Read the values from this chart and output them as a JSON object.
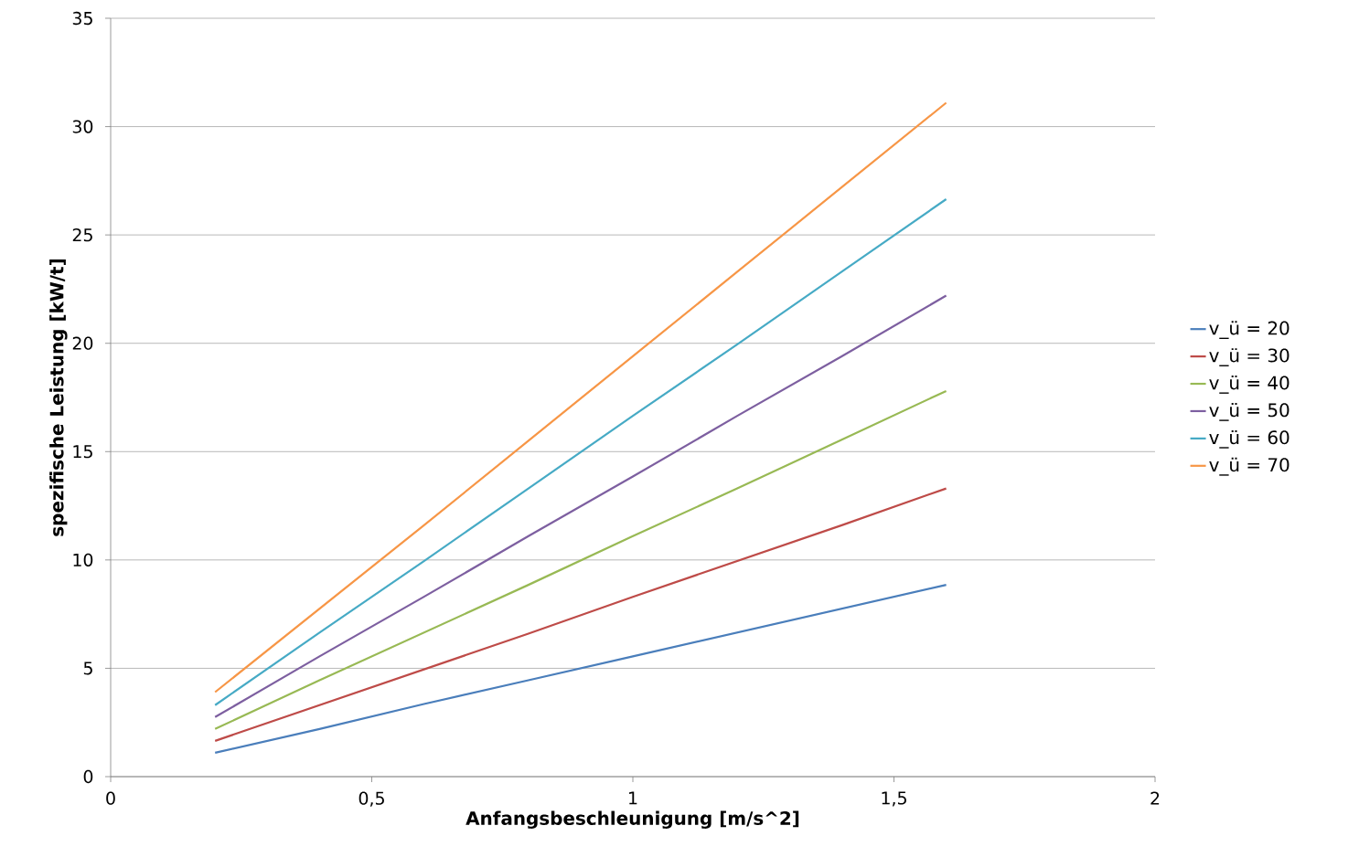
{
  "chart_data": {
    "type": "line",
    "xlabel": "Anfangsbeschleunigung [m/s^2]",
    "ylabel": "spezifische Leistung [kW/t]",
    "x": [
      0.2,
      0.4,
      0.6,
      0.8,
      1.0,
      1.2,
      1.4,
      1.6
    ],
    "series": [
      {
        "name": "v_ü = 20",
        "color": "#4a7ebb",
        "values": [
          1.1,
          2.2,
          3.35,
          4.45,
          5.55,
          6.65,
          7.75,
          8.85
        ]
      },
      {
        "name": "v_ü = 30",
        "color": "#be4b48",
        "values": [
          1.65,
          3.3,
          4.95,
          6.6,
          8.3,
          9.95,
          11.6,
          13.3
        ]
      },
      {
        "name": "v_ü = 40",
        "color": "#98b954",
        "values": [
          2.2,
          4.45,
          6.65,
          8.85,
          11.1,
          13.3,
          15.55,
          17.8
        ]
      },
      {
        "name": "v_ü = 50",
        "color": "#7d5fa0",
        "values": [
          2.75,
          5.55,
          8.3,
          11.1,
          13.85,
          16.65,
          19.4,
          22.2
        ]
      },
      {
        "name": "v_ü = 60",
        "color": "#46aac5",
        "values": [
          3.3,
          6.65,
          9.95,
          13.3,
          16.65,
          19.95,
          23.3,
          26.65
        ]
      },
      {
        "name": "v_ü = 70",
        "color": "#f79646",
        "values": [
          3.9,
          7.75,
          11.6,
          15.5,
          19.4,
          23.3,
          27.2,
          31.1
        ]
      }
    ],
    "xlim": [
      0,
      2
    ],
    "xticks": [
      0,
      {
        "value": 0.5,
        "label": "0,5"
      },
      1,
      {
        "value": 1.5,
        "label": "1,5"
      },
      2
    ],
    "ylim": [
      0,
      35
    ],
    "yticks": [
      0,
      5,
      10,
      15,
      20,
      25,
      30,
      35
    ],
    "grid": "y",
    "legend": "right",
    "marker": "none",
    "line_style": "solid"
  }
}
